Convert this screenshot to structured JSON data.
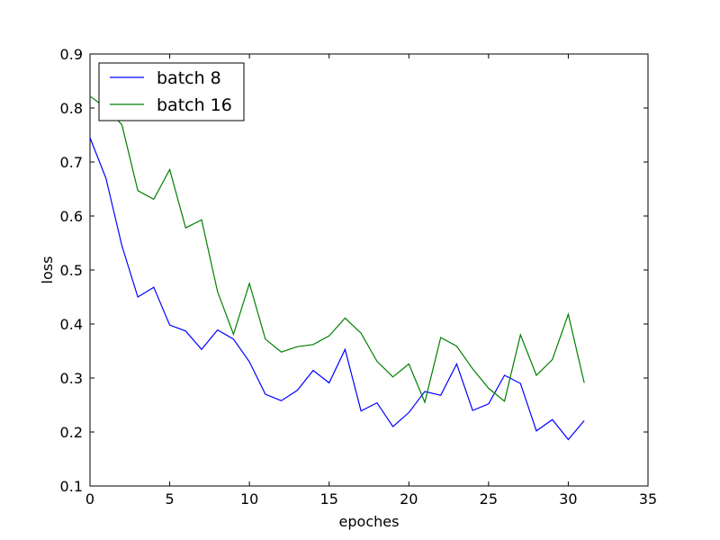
{
  "chart_data": {
    "type": "line",
    "title": "",
    "xlabel": "epoches",
    "ylabel": "loss",
    "xlim": [
      0,
      35
    ],
    "ylim": [
      0.1,
      0.9
    ],
    "xticks": [
      0,
      5,
      10,
      15,
      20,
      25,
      30,
      35
    ],
    "xtick_labels": [
      "0",
      "5",
      "10",
      "15",
      "20",
      "25",
      "30",
      "35"
    ],
    "yticks": [
      0.1,
      0.2,
      0.3,
      0.4,
      0.5,
      0.6,
      0.7,
      0.8,
      0.9
    ],
    "ytick_labels": [
      "0.1",
      "0.2",
      "0.3",
      "0.4",
      "0.5",
      "0.6",
      "0.7",
      "0.8",
      "0.9"
    ],
    "grid": false,
    "legend_position": "top-left",
    "x": [
      0,
      1,
      2,
      3,
      4,
      5,
      6,
      7,
      8,
      9,
      10,
      11,
      12,
      13,
      14,
      15,
      16,
      17,
      18,
      19,
      20,
      21,
      22,
      23,
      24,
      25,
      26,
      27,
      28,
      29,
      30,
      31
    ],
    "series": [
      {
        "name": "batch 8",
        "color": "#0000ff",
        "values": [
          0.745,
          0.67,
          0.545,
          0.45,
          0.468,
          0.398,
          0.387,
          0.353,
          0.389,
          0.372,
          0.33,
          0.27,
          0.258,
          0.277,
          0.314,
          0.291,
          0.353,
          0.239,
          0.254,
          0.21,
          0.236,
          0.275,
          0.268,
          0.326,
          0.24,
          0.252,
          0.305,
          0.29,
          0.202,
          0.223,
          0.186,
          0.221
        ]
      },
      {
        "name": "batch 16",
        "color": "#008000",
        "values": [
          0.822,
          0.8,
          0.769,
          0.647,
          0.631,
          0.686,
          0.578,
          0.593,
          0.46,
          0.381,
          0.475,
          0.372,
          0.348,
          0.358,
          0.362,
          0.378,
          0.411,
          0.383,
          0.331,
          0.302,
          0.326,
          0.255,
          0.375,
          0.359,
          0.317,
          0.281,
          0.257,
          0.38,
          0.305,
          0.334,
          0.418,
          0.291
        ]
      }
    ]
  }
}
